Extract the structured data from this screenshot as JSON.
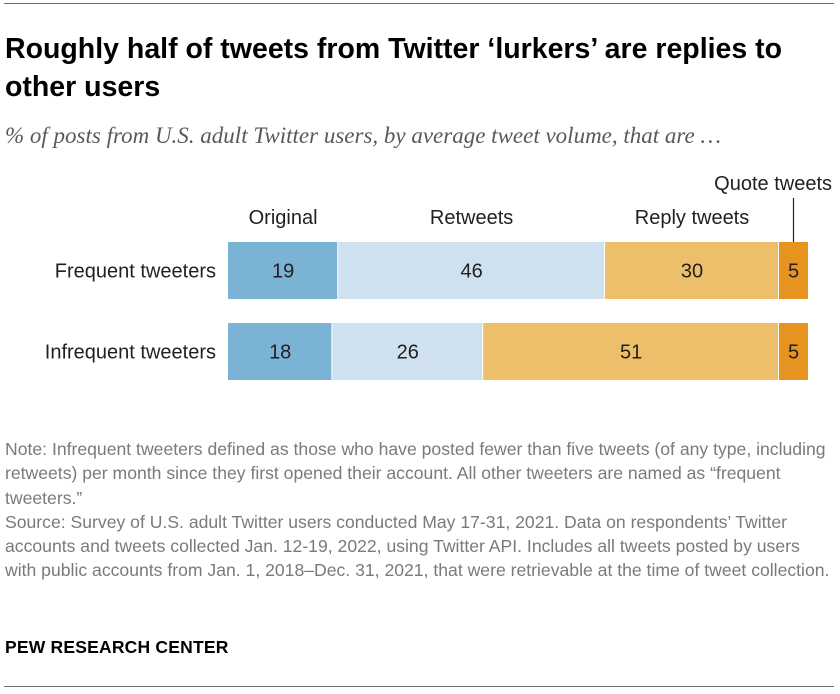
{
  "title": "Roughly half of tweets from Twitter ‘lurkers’ are replies to other users",
  "subtitle": "% of posts from U.S. adult Twitter users, by average tweet volume, that are …",
  "chart_data": {
    "type": "bar",
    "orientation": "horizontal",
    "stacked": true,
    "categories": [
      "Frequent tweeters",
      "Infrequent tweeters"
    ],
    "series": [
      {
        "name": "Original",
        "values": [
          19,
          18
        ],
        "color": "#7bb3d5"
      },
      {
        "name": "Retweets",
        "values": [
          46,
          26
        ],
        "color": "#cfe1ee"
      },
      {
        "name": "Reply tweets",
        "values": [
          30,
          51
        ],
        "color": "#eebf6a"
      },
      {
        "name": "Quote tweets",
        "values": [
          5,
          5
        ],
        "color": "#e6941f"
      }
    ],
    "xlim": [
      0,
      100
    ],
    "grid": false,
    "legend": "top, as segment labels"
  },
  "note": "Note: Infrequent tweeters defined as those who have posted fewer than five tweets (of any type, including retweets) per month since they first opened their account. All other tweeters are named as “frequent tweeters.”",
  "source": "Source: Survey of U.S. adult Twitter users conducted May 17-31, 2021. Data on respondents’ Twitter accounts and tweets collected Jan. 12-19, 2022, using Twitter API. Includes all tweets posted by users with public accounts from Jan. 1, 2018–Dec. 31, 2021, that were retrievable at the time of tweet collection.",
  "brand": "PEW RESEARCH CENTER"
}
